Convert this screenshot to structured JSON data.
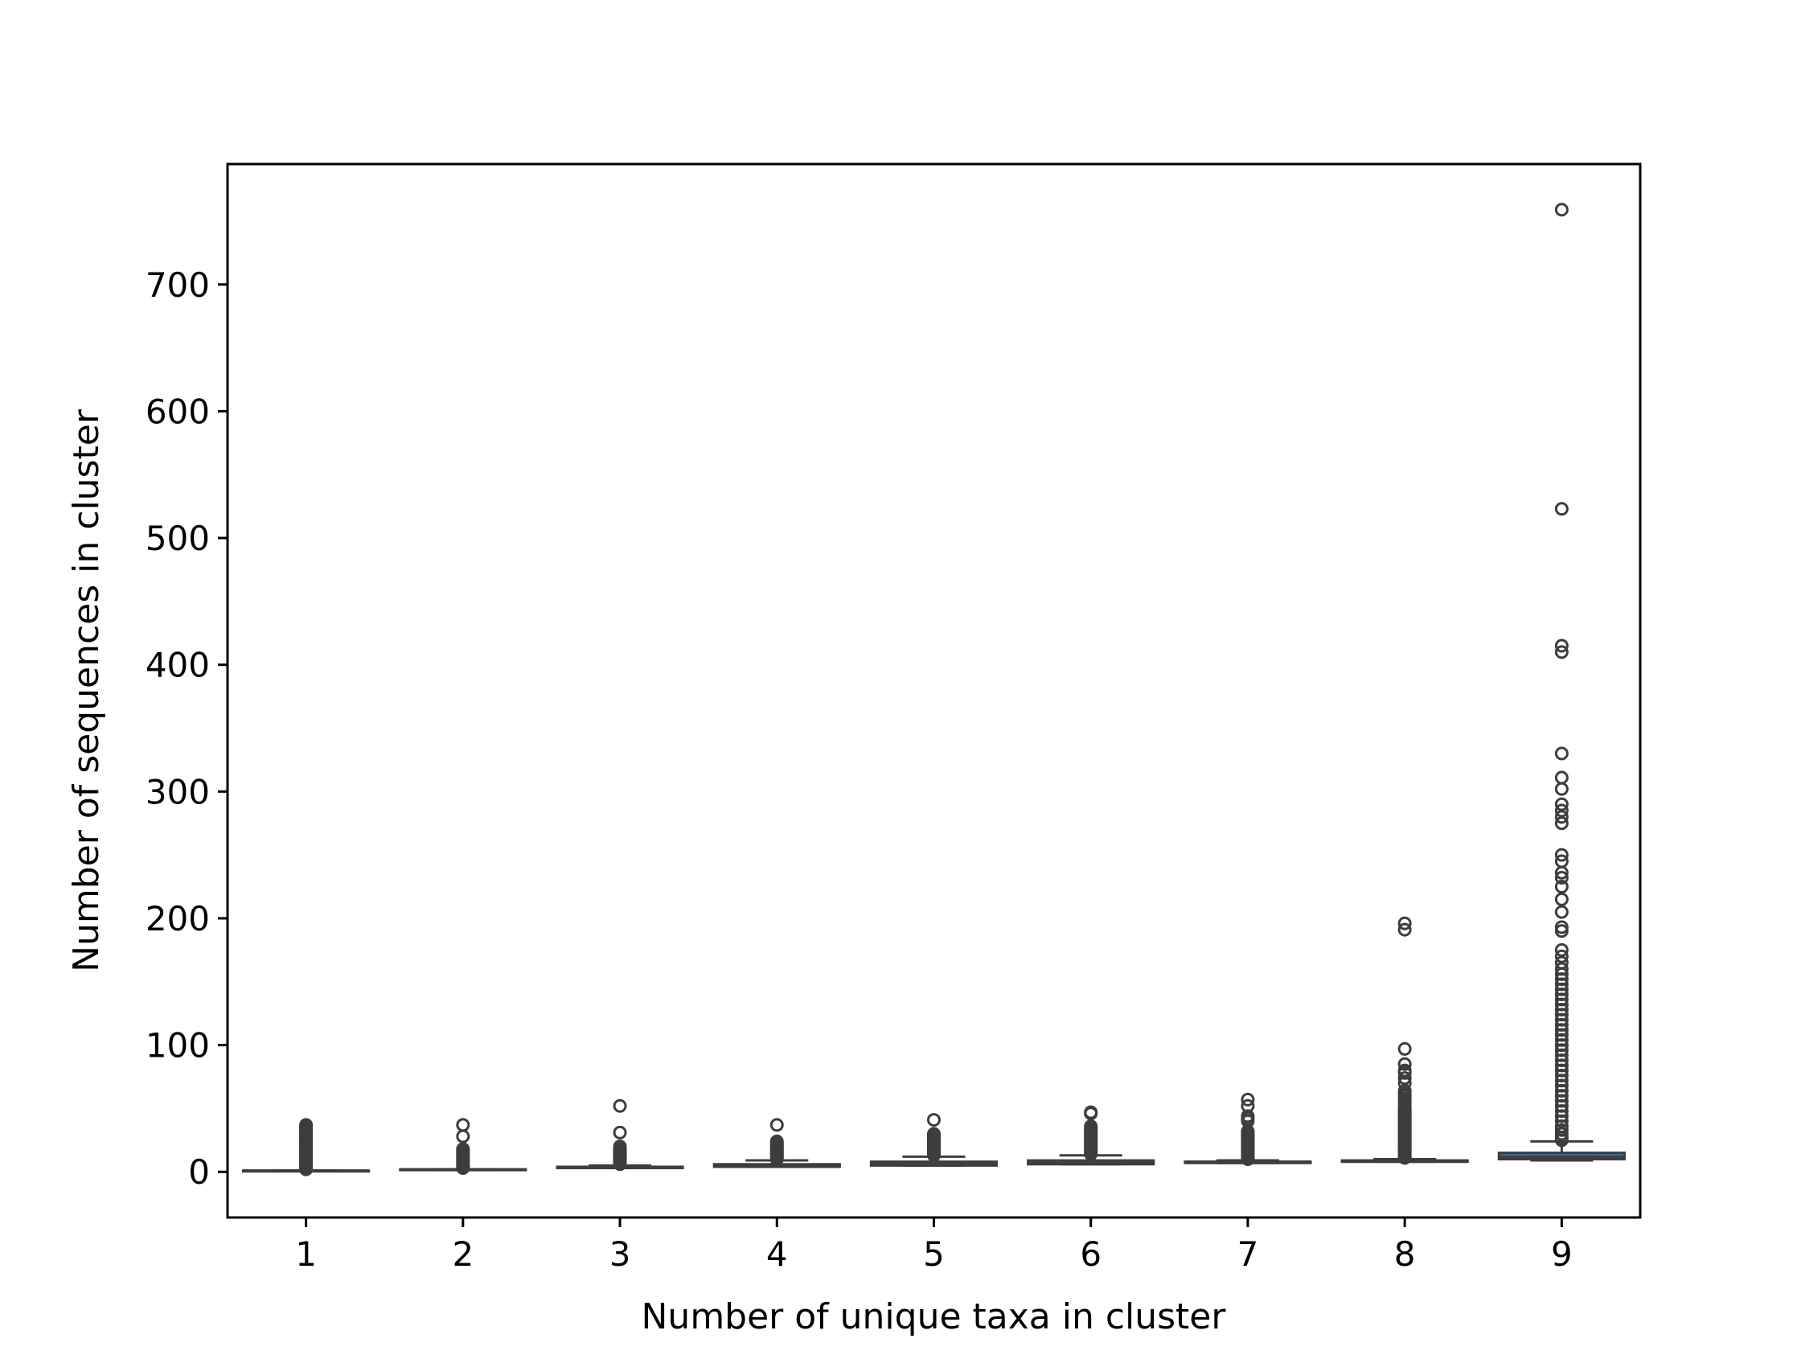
{
  "chart_data": {
    "type": "box",
    "title": "",
    "xlabel": "Number of unique taxa in cluster",
    "ylabel": "Number of sequences in cluster",
    "ylim": [
      -36,
      795
    ],
    "yticks": [
      0,
      100,
      200,
      300,
      400,
      500,
      600,
      700
    ],
    "categories": [
      "1",
      "2",
      "3",
      "4",
      "5",
      "6",
      "7",
      "8",
      "9"
    ],
    "grid": false,
    "legend": "none",
    "colors": {
      "box_fill": "#3a73a6",
      "box_edge": "#3d3d3d",
      "axis": "#000000"
    },
    "boxes": [
      {
        "category": "1",
        "whisker_low": 1,
        "q1": 1,
        "median": 1,
        "q3": 1,
        "whisker_high": 1,
        "outliers": [
          2,
          3,
          4,
          5,
          6,
          7,
          8,
          9,
          10,
          11,
          12,
          13,
          14,
          15,
          16,
          17,
          18,
          19,
          20,
          21,
          22,
          23,
          24,
          25,
          26,
          27,
          28,
          29,
          30,
          31,
          32,
          33,
          34,
          35,
          36,
          37
        ]
      },
      {
        "category": "2",
        "whisker_low": 2,
        "q1": 2,
        "median": 2,
        "q3": 2,
        "whisker_high": 2,
        "outliers": [
          3,
          4,
          5,
          6,
          7,
          8,
          9,
          10,
          11,
          12,
          13,
          14,
          15,
          16,
          17,
          18,
          28,
          37
        ]
      },
      {
        "category": "3",
        "whisker_low": 3,
        "q1": 3,
        "median": 3,
        "q3": 4,
        "whisker_high": 5,
        "outliers": [
          6,
          7,
          8,
          9,
          10,
          11,
          12,
          13,
          14,
          15,
          16,
          17,
          18,
          19,
          20,
          31,
          52
        ]
      },
      {
        "category": "4",
        "whisker_low": 4,
        "q1": 4,
        "median": 5,
        "q3": 6,
        "whisker_high": 9,
        "outliers": [
          10,
          11,
          12,
          13,
          14,
          15,
          16,
          17,
          18,
          19,
          20,
          21,
          22,
          23,
          24,
          37
        ]
      },
      {
        "category": "5",
        "whisker_low": 5,
        "q1": 5,
        "median": 6,
        "q3": 8,
        "whisker_high": 12,
        "outliers": [
          13,
          14,
          15,
          16,
          17,
          18,
          19,
          20,
          21,
          22,
          23,
          24,
          25,
          26,
          27,
          28,
          29,
          30,
          41
        ]
      },
      {
        "category": "6",
        "whisker_low": 6,
        "q1": 6,
        "median": 7,
        "q3": 9,
        "whisker_high": 13,
        "outliers": [
          14,
          15,
          16,
          17,
          18,
          19,
          20,
          21,
          22,
          23,
          24,
          25,
          26,
          27,
          28,
          29,
          30,
          31,
          32,
          33,
          34,
          35,
          36,
          46,
          47
        ]
      },
      {
        "category": "7",
        "whisker_low": 7,
        "q1": 7,
        "median": 8,
        "q3": 8,
        "whisker_high": 9,
        "outliers": [
          10,
          11,
          12,
          13,
          14,
          15,
          16,
          17,
          18,
          19,
          20,
          21,
          22,
          23,
          24,
          25,
          26,
          27,
          28,
          29,
          30,
          31,
          32,
          40,
          42,
          44,
          52,
          57
        ]
      },
      {
        "category": "8",
        "whisker_low": 8,
        "q1": 8,
        "median": 8,
        "q3": 9,
        "whisker_high": 10,
        "outliers": [
          11,
          12,
          13,
          14,
          15,
          16,
          17,
          18,
          19,
          20,
          21,
          22,
          23,
          24,
          25,
          26,
          27,
          28,
          29,
          30,
          31,
          32,
          33,
          34,
          35,
          36,
          37,
          38,
          39,
          40,
          41,
          42,
          43,
          44,
          45,
          46,
          47,
          48,
          49,
          50,
          52,
          54,
          56,
          58,
          60,
          62,
          64,
          70,
          74,
          78,
          80,
          85,
          97,
          191,
          196
        ]
      },
      {
        "category": "9",
        "whisker_low": 9,
        "q1": 10,
        "median": 12,
        "q3": 15,
        "whisker_high": 24,
        "outliers": [
          25,
          27,
          30,
          33,
          36,
          40,
          44,
          48,
          52,
          56,
          60,
          64,
          68,
          72,
          76,
          80,
          84,
          88,
          92,
          96,
          100,
          104,
          108,
          112,
          116,
          120,
          124,
          128,
          132,
          136,
          140,
          144,
          148,
          152,
          156,
          160,
          165,
          170,
          175,
          190,
          193,
          205,
          215,
          225,
          232,
          236,
          245,
          250,
          275,
          280,
          285,
          290,
          302,
          311,
          330,
          410,
          415,
          523,
          759
        ]
      }
    ]
  }
}
